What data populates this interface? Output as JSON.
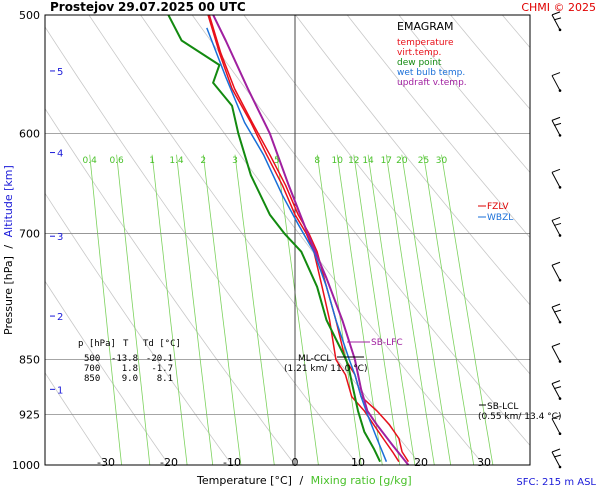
{
  "header": {
    "station": "Prostejov",
    "datetime": "29.07.2025 00 UTC",
    "credit": "CHMI © 2025"
  },
  "footer": {
    "sfc": "SFC: 215 m ASL"
  },
  "labels": {
    "y_left": "Pressure [hPa]",
    "y_sep": "/",
    "y_right": "Altitude [km]",
    "x_temp": "Temperature [°C]",
    "x_sep": "/",
    "x_mix": "Mixing ratio [g/kg]"
  },
  "legend": {
    "title": "EMAGRAM",
    "items": [
      {
        "label": "temperature",
        "color": "#e8101a"
      },
      {
        "label": "virt.temp.",
        "color": "#e8101a"
      },
      {
        "label": "dew point",
        "color": "#138a10"
      },
      {
        "label": "wet bulb temp.",
        "color": "#1a6fd8"
      },
      {
        "label": "updraft v.temp.",
        "color": "#a020a0"
      }
    ]
  },
  "table": {
    "header": [
      "p [hPa]",
      "T",
      "Td [°C]"
    ],
    "rows": [
      [
        "500",
        "-13.8",
        "-20.1"
      ],
      [
        "700",
        "1.8",
        "-1.7"
      ],
      [
        "850",
        "9.0",
        "8.1"
      ]
    ]
  },
  "annotations": {
    "fzlv": "FZLV",
    "wbzl": "WBZL",
    "sb_lfc": "SB-LFC",
    "ml_ccl": "ML-CCL",
    "ml_ccl_detail": "(1.21 km/ 11.0 °C)",
    "sb_lcl": "SB-LCL",
    "sb_lcl_detail": "(0.55 km/ 13.4 °C)"
  },
  "chart_data": {
    "type": "line",
    "title": "Prostejov 29.07.2025 00 UTC",
    "xlabel": "Temperature [°C]",
    "ylabel": "Pressure [hPa] / Altitude [km]",
    "x_scale": "linear",
    "y_scale": "log-pressure",
    "xlim": [
      -38,
      48
    ],
    "ylim": [
      1000,
      500
    ],
    "x_ticks": [
      -30,
      -20,
      -10,
      0,
      10,
      20,
      30
    ],
    "pressure_ticks": [
      500,
      600,
      700,
      850,
      925,
      1000
    ],
    "altitude_ticks": [
      {
        "label": "1",
        "p": 890
      },
      {
        "label": "2",
        "p": 795
      },
      {
        "label": "3",
        "p": 703
      },
      {
        "label": "4",
        "p": 618
      },
      {
        "label": "5",
        "p": 545
      }
    ],
    "mixing_ratio_lines": [
      0.4,
      0.6,
      1,
      1.4,
      2,
      3,
      5,
      8,
      10,
      12,
      14,
      17,
      20,
      25,
      30
    ],
    "grid": true,
    "series": [
      {
        "name": "temperature",
        "color": "#e8101a",
        "x": [
          16.5,
          15.5,
          14,
          12.5,
          11,
          9,
          8,
          6.5,
          5.5,
          4.3,
          3,
          1.8,
          0,
          -2,
          -4.5,
          -7,
          -10,
          -12,
          -13.8
        ],
        "p": [
          995,
          980,
          960,
          940,
          920,
          900,
          870,
          850,
          800,
          760,
          720,
          700,
          680,
          650,
          620,
          590,
          560,
          530,
          500
        ]
      },
      {
        "name": "virt.temp.",
        "color": "#e8101a",
        "x": [
          18,
          17,
          16.5,
          15,
          13,
          10.5,
          9.5,
          8,
          6.5,
          5,
          3.5,
          2.2,
          0.5,
          -1.5,
          -4,
          -6.8,
          -9.6,
          -11.8,
          -13.6
        ],
        "p": [
          995,
          980,
          960,
          940,
          920,
          900,
          870,
          850,
          800,
          760,
          720,
          700,
          680,
          650,
          620,
          590,
          560,
          530,
          500
        ]
      },
      {
        "name": "dew point",
        "color": "#138a10",
        "x": [
          13.5,
          12.5,
          11,
          10,
          9,
          8.5,
          8.1,
          5,
          3.5,
          1,
          -1.7,
          -4,
          -7,
          -9,
          -10,
          -13,
          -12,
          -18,
          -20.1
        ],
        "p": [
          995,
          975,
          950,
          920,
          880,
          860,
          850,
          800,
          760,
          720,
          700,
          680,
          640,
          600,
          575,
          555,
          540,
          520,
          500
        ]
      },
      {
        "name": "wet bulb temp.",
        "color": "#1a6fd8",
        "x": [
          14.5,
          13,
          11.5,
          10.5,
          9.5,
          8.6,
          6.5,
          5,
          3,
          0.5,
          -2,
          -5,
          -8,
          -11,
          -14
        ],
        "p": [
          995,
          960,
          925,
          900,
          870,
          850,
          800,
          760,
          720,
          690,
          660,
          620,
          590,
          550,
          510
        ]
      },
      {
        "name": "updraft v.temp.",
        "color": "#a020a0",
        "x": [
          18,
          15.5,
          13,
          11.5,
          10.5,
          9.5,
          7.5,
          5,
          2,
          -1,
          -4,
          -7.5,
          -11,
          -14
        ],
        "p": [
          1000,
          970,
          940,
          920,
          890,
          850,
          800,
          750,
          700,
          650,
          600,
          560,
          520,
          490
        ]
      }
    ],
    "wind_barbs": [
      {
        "p": 510
      },
      {
        "p": 560
      },
      {
        "p": 600
      },
      {
        "p": 650
      },
      {
        "p": 700
      },
      {
        "p": 750
      },
      {
        "p": 800
      },
      {
        "p": 850
      },
      {
        "p": 900
      },
      {
        "p": 950
      },
      {
        "p": 1000
      }
    ]
  }
}
